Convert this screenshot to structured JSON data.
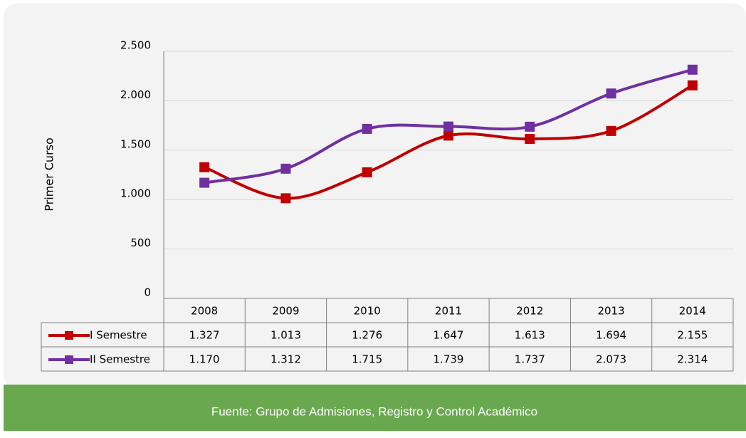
{
  "chart_data": {
    "type": "line",
    "y_label": "Primer Curso",
    "categories": [
      "2008",
      "2009",
      "2010",
      "2011",
      "2012",
      "2013",
      "2014"
    ],
    "series": [
      {
        "name": "I Semestre",
        "color": "#c00000",
        "values": [
          1327,
          1013,
          1276,
          1647,
          1613,
          1694,
          2155
        ],
        "value_labels": [
          "1.327",
          "1.013",
          "1.276",
          "1.647",
          "1.613",
          "1.694",
          "2.155"
        ]
      },
      {
        "name": "II Semestre",
        "color": "#7030a0",
        "values": [
          1170,
          1312,
          1715,
          1739,
          1737,
          2073,
          2314
        ],
        "value_labels": [
          "1.170",
          "1.312",
          "1.715",
          "1.739",
          "1.737",
          "2.073",
          "2.314"
        ]
      }
    ],
    "ylim": [
      0,
      2500
    ],
    "yticks": [
      0,
      500,
      {
        "value": 1000,
        "label": "1.000"
      },
      {
        "value": 1500,
        "label": "1.500"
      },
      {
        "value": 2000,
        "label": "2.000"
      },
      {
        "value": 2500,
        "label": "2.500"
      }
    ],
    "grid": true,
    "source": "Fuente: Grupo de Admisiones, Registro y Control Académico"
  }
}
